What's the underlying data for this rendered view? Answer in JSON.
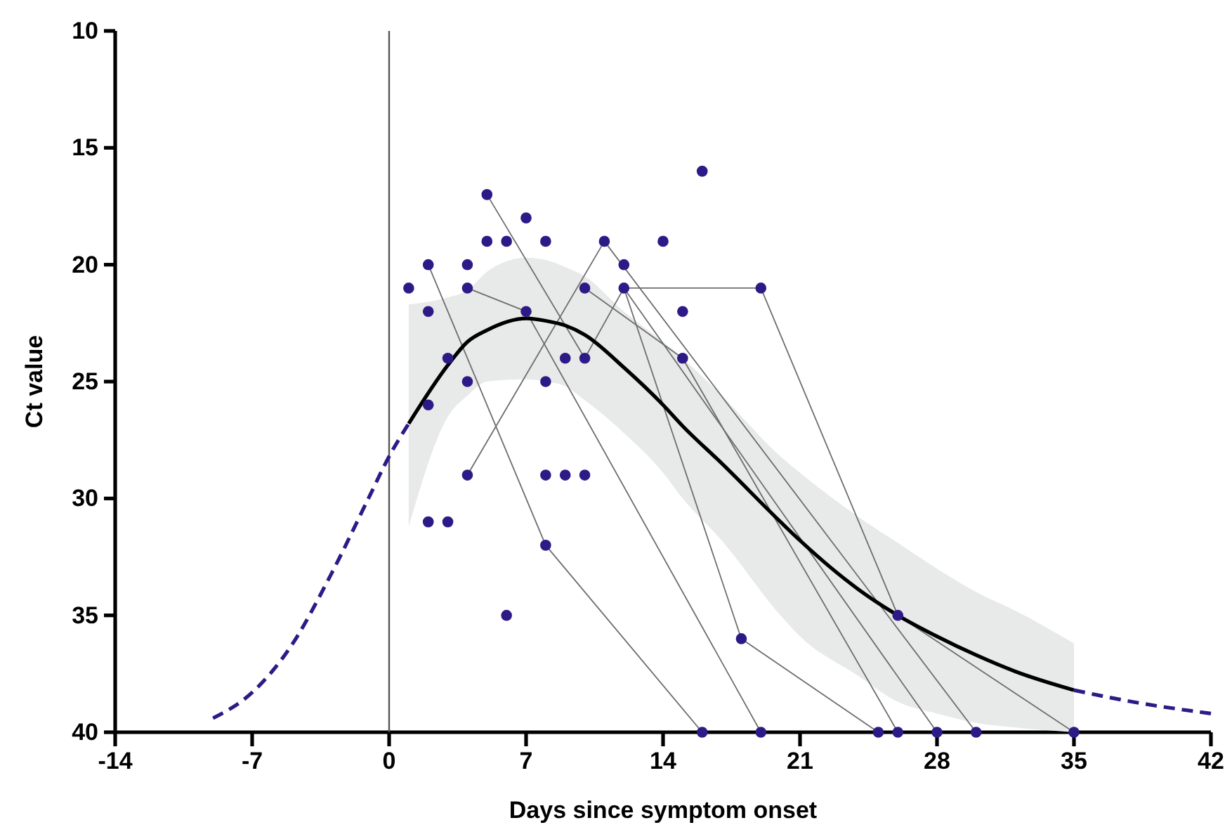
{
  "chart_data": {
    "type": "line",
    "xlabel": "Days since symptom onset",
    "ylabel": "Ct value",
    "xlim": [
      -14,
      42
    ],
    "xticks": [
      -14,
      -7,
      0,
      7,
      14,
      21,
      28,
      35,
      42
    ],
    "ylim": [
      40,
      10
    ],
    "yticks": [
      10,
      15,
      20,
      25,
      30,
      35,
      40
    ],
    "grid": false,
    "ref_lines": [
      {
        "axis": "x",
        "value": 0,
        "color": "#555555"
      }
    ],
    "series": [
      {
        "type": "line",
        "color": "#6e6e6e",
        "marker": "none",
        "x": [
          2,
          8,
          16
        ],
        "values": [
          20,
          32,
          40
        ]
      },
      {
        "type": "line",
        "color": "#6e6e6e",
        "marker": "none",
        "x": [
          4,
          7,
          19
        ],
        "values": [
          21,
          22,
          40
        ]
      },
      {
        "type": "line",
        "color": "#6e6e6e",
        "marker": "none",
        "x": [
          5,
          10,
          12,
          28
        ],
        "values": [
          17,
          24,
          21,
          40
        ]
      },
      {
        "type": "line",
        "color": "#6e6e6e",
        "marker": "none",
        "x": [
          12,
          18,
          25
        ],
        "values": [
          21,
          36,
          40
        ]
      },
      {
        "type": "line",
        "color": "#6e6e6e",
        "marker": "none",
        "x": [
          4,
          11,
          30
        ],
        "values": [
          29,
          19,
          40
        ]
      },
      {
        "type": "line",
        "color": "#6e6e6e",
        "marker": "none",
        "x": [
          10,
          15,
          26
        ],
        "values": [
          21,
          24,
          40
        ]
      },
      {
        "type": "line",
        "color": "#6e6e6e",
        "marker": "none",
        "x": [
          12,
          19,
          26,
          35
        ],
        "values": [
          21,
          21,
          35,
          40
        ]
      },
      {
        "color": "#000000",
        "marker": "none",
        "line_style": "solid",
        "x": [
          1,
          3,
          4,
          5,
          7,
          8,
          9,
          10,
          12,
          14,
          15,
          17,
          20,
          21,
          24,
          26,
          28,
          30,
          32,
          35
        ],
        "values": [
          26.8,
          24.3,
          23.3,
          22.8,
          22.3,
          22.4,
          22.6,
          23.0,
          24.4,
          26.0,
          26.9,
          28.5,
          31.0,
          31.8,
          33.9,
          35.0,
          35.9,
          36.7,
          37.4,
          38.2
        ],
        "upper": [
          21.7,
          21.4,
          21.1,
          20.3,
          19.7,
          19.8,
          20.1,
          20.5,
          22.0,
          23.3,
          24.0,
          25.6,
          28.2,
          28.9,
          30.8,
          31.9,
          33.0,
          34.0,
          34.8,
          36.2
        ],
        "lower": [
          31.2,
          26.5,
          25.6,
          25.0,
          24.9,
          25.0,
          25.2,
          25.8,
          27.2,
          28.9,
          30.0,
          31.8,
          35.0,
          35.9,
          37.6,
          38.7,
          39.2,
          39.6,
          39.8,
          40
        ]
      },
      {
        "type": "line",
        "color": "#2e1a87",
        "marker": "none",
        "line_style": "dashed",
        "x": [
          -9,
          -7,
          -5,
          -3,
          -1,
          0,
          1
        ],
        "values": [
          39.4,
          38.3,
          36.3,
          33.3,
          29.9,
          28.2,
          26.8
        ]
      },
      {
        "type": "line",
        "color": "#2e1a87",
        "marker": "none",
        "line_style": "dashed",
        "x": [
          35,
          38,
          42
        ],
        "values": [
          38.2,
          38.7,
          39.2
        ]
      },
      {
        "type": "scatter",
        "color": "#2e1a87",
        "marker": "circle",
        "x": [
          1,
          2,
          2,
          2,
          2,
          3,
          3,
          4,
          4,
          4,
          4,
          5,
          5,
          6,
          6,
          7,
          7,
          8,
          8,
          8,
          8,
          9,
          9,
          10,
          10,
          10,
          11,
          12,
          12,
          14,
          15,
          15,
          16,
          19,
          16,
          19,
          18,
          25,
          26,
          26,
          28,
          30,
          35
        ],
        "values": [
          21,
          20,
          22,
          26,
          31,
          24,
          31,
          20,
          21,
          25,
          29,
          17,
          19,
          19,
          35,
          18,
          22,
          19,
          25,
          29,
          32,
          24,
          29,
          21,
          24,
          29,
          19,
          20,
          21,
          19,
          22,
          24,
          16,
          21,
          40,
          40,
          36,
          40,
          40,
          35,
          40,
          40,
          40
        ]
      }
    ]
  }
}
